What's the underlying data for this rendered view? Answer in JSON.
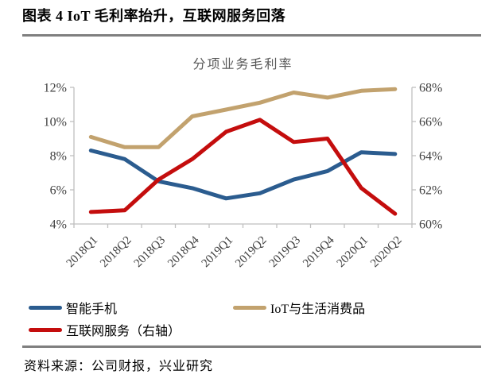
{
  "header": {
    "title": "图表 4 IoT 毛利率抬升，互联网服务回落"
  },
  "chart_data": {
    "type": "line",
    "title": "分项业务毛利率",
    "categories": [
      "2018Q1",
      "2018Q2",
      "2018Q3",
      "2018Q4",
      "2019Q1",
      "2019Q2",
      "2019Q3",
      "2019Q4",
      "2020Q1",
      "2020Q2"
    ],
    "series": [
      {
        "name": "智能手机",
        "axis": "left",
        "color": "#2b5c8f",
        "values": [
          8.3,
          7.8,
          6.5,
          6.1,
          5.5,
          5.8,
          6.6,
          7.1,
          8.2,
          8.1
        ]
      },
      {
        "name": "IoT与生活消费品",
        "axis": "left",
        "color": "#c2a26e",
        "values": [
          9.1,
          8.5,
          8.5,
          10.3,
          10.7,
          11.1,
          11.7,
          11.4,
          11.8,
          11.9
        ]
      },
      {
        "name": "互联网服务（右轴）",
        "axis": "right",
        "color": "#c40d0d",
        "values": [
          60.7,
          60.8,
          62.6,
          63.8,
          65.4,
          66.1,
          64.8,
          65.0,
          62.1,
          60.6
        ]
      }
    ],
    "left_axis": {
      "min": 4,
      "max": 12,
      "step": 2,
      "tick_labels": [
        "12%",
        "10%",
        "8%",
        "6%",
        "4%"
      ]
    },
    "right_axis": {
      "min": 60,
      "max": 68,
      "step": 2,
      "tick_labels": [
        "68%",
        "66%",
        "64%",
        "62%",
        "60%"
      ]
    },
    "grid": false,
    "legend_position": "bottom"
  },
  "footer": {
    "source": "资料来源：公司财报，兴业研究"
  },
  "style": {
    "axis_line_color": "#bfbfbf",
    "tick_label_color": "#404040",
    "chart_title_color": "#595959",
    "rule_color": "#7f7f7f"
  }
}
